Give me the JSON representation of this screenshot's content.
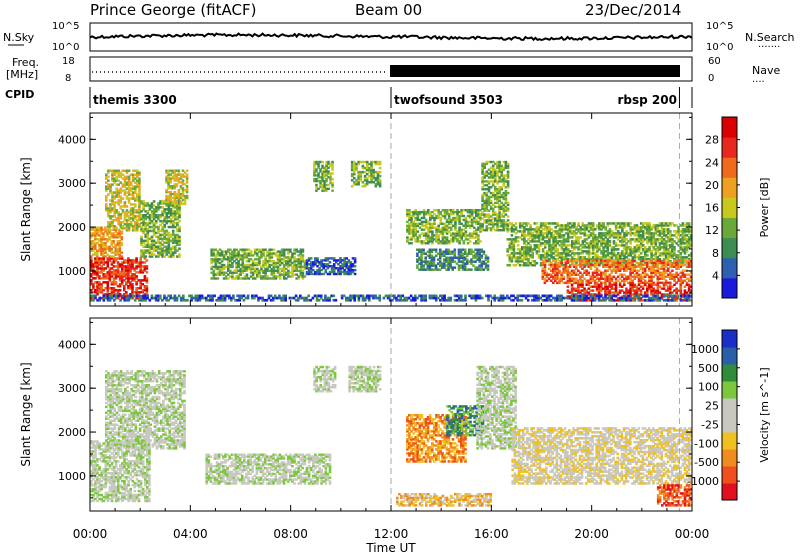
{
  "header": {
    "station": "Prince George (fitACF)",
    "beam": "Beam 00",
    "date": "23/Dec/2014"
  },
  "top_panels": {
    "nsky_label": "N.Sky",
    "nsky_ticks": [
      "10^5",
      "10^0"
    ],
    "nsearch_label": "N.Search",
    "nsearch_ticks": [
      "10^5",
      "10^0"
    ],
    "freq_label": "Freq.",
    "freq_unit": "[MHz]",
    "freq_ticks": [
      "18",
      "8"
    ],
    "nave_label": "Nave",
    "nave_ticks": [
      "60",
      "0"
    ],
    "cpid_label": "CPID",
    "cpid_segments": [
      {
        "label": "themis 3300",
        "start_hour": 0.0,
        "end_hour": 12.0
      },
      {
        "label": "twofsound 3503",
        "start_hour": 12.0,
        "end_hour": 23.5
      },
      {
        "label": "rbsp 200",
        "start_hour": 23.5,
        "end_hour": 24.0
      }
    ]
  },
  "colors": {
    "power_scale": [
      "#1a1adc",
      "#2f5fb0",
      "#3d8c52",
      "#6aa83a",
      "#c8c81e",
      "#f0a020",
      "#f06a1e",
      "#e8281e",
      "#d80000"
    ],
    "velocity_scale": [
      "#1a2fc8",
      "#2a5fa8",
      "#2e8c3a",
      "#7cc83c",
      "#c8c8c0",
      "#c8c8c0",
      "#f0c020",
      "#f08c1e",
      "#f0501e",
      "#e0101e"
    ]
  },
  "chart_data": [
    {
      "type": "heatmap",
      "ylabel": "Slant Range [km]",
      "yticks": [
        "1000",
        "2000",
        "3000",
        "4000"
      ],
      "colorbar_label": "Power [dB]",
      "colorbar_ticks": [
        "4",
        "8",
        "12",
        "16",
        "20",
        "24",
        "28"
      ],
      "colorbar_range": [
        0,
        32
      ],
      "regions": [
        {
          "t0": 0.0,
          "t1": 2.3,
          "r0": 350,
          "r1": 1300,
          "level": 7
        },
        {
          "t0": 0.0,
          "t1": 1.3,
          "r0": 1300,
          "r1": 2000,
          "level": 5
        },
        {
          "t0": 0.6,
          "t1": 2.0,
          "r0": 1900,
          "r1": 3300,
          "level": 4
        },
        {
          "t0": 2.0,
          "t1": 3.6,
          "r0": 1300,
          "r1": 2600,
          "level": 3
        },
        {
          "t0": 3.0,
          "t1": 3.9,
          "r0": 2500,
          "r1": 3300,
          "level": 4
        },
        {
          "t0": 4.8,
          "t1": 8.6,
          "r0": 800,
          "r1": 1500,
          "level": 3
        },
        {
          "t0": 8.6,
          "t1": 10.6,
          "r0": 900,
          "r1": 1300,
          "level": 1
        },
        {
          "t0": 8.9,
          "t1": 9.7,
          "r0": 2800,
          "r1": 3500,
          "level": 3
        },
        {
          "t0": 10.4,
          "t1": 11.6,
          "r0": 2900,
          "r1": 3500,
          "level": 3
        },
        {
          "t0": 12.6,
          "t1": 15.6,
          "r0": 1600,
          "r1": 2400,
          "level": 3
        },
        {
          "t0": 13.0,
          "t1": 15.9,
          "r0": 1000,
          "r1": 1500,
          "level": 2
        },
        {
          "t0": 15.6,
          "t1": 16.7,
          "r0": 1900,
          "r1": 3500,
          "level": 3
        },
        {
          "t0": 16.6,
          "t1": 24.0,
          "r0": 1100,
          "r1": 2100,
          "level": 3
        },
        {
          "t0": 18.0,
          "t1": 24.0,
          "r0": 700,
          "r1": 1250,
          "level": 6
        },
        {
          "t0": 19.0,
          "t1": 24.0,
          "r0": 300,
          "r1": 700,
          "level": 7
        },
        {
          "t0": 0.0,
          "t1": 24.0,
          "r0": 300,
          "r1": 450,
          "level": 1
        }
      ]
    },
    {
      "type": "heatmap",
      "ylabel": "Slant Range [km]",
      "yticks": [
        "1000",
        "2000",
        "3000",
        "4000"
      ],
      "colorbar_label": "Velocity [m s^-1]",
      "colorbar_ticks": [
        "1000",
        "500",
        "100",
        "25",
        "-25",
        "-100",
        "-500",
        "-1000"
      ],
      "colorbar_range": [
        -1000,
        1000
      ],
      "regions": [
        {
          "t0": 0.0,
          "t1": 2.4,
          "r0": 400,
          "r1": 1800,
          "level": 4
        },
        {
          "t0": 0.6,
          "t1": 3.8,
          "r0": 1600,
          "r1": 3400,
          "level": 4
        },
        {
          "t0": 4.6,
          "t1": 9.6,
          "r0": 800,
          "r1": 1500,
          "level": 4
        },
        {
          "t0": 8.9,
          "t1": 9.8,
          "r0": 2900,
          "r1": 3500,
          "level": 4
        },
        {
          "t0": 10.3,
          "t1": 11.6,
          "r0": 2900,
          "r1": 3500,
          "level": 4
        },
        {
          "t0": 12.6,
          "t1": 15.0,
          "r0": 1300,
          "r1": 2400,
          "level": 7
        },
        {
          "t0": 14.2,
          "t1": 15.7,
          "r0": 1900,
          "r1": 2600,
          "level": 2
        },
        {
          "t0": 15.4,
          "t1": 17.0,
          "r0": 1600,
          "r1": 3500,
          "level": 4
        },
        {
          "t0": 16.8,
          "t1": 24.0,
          "r0": 800,
          "r1": 2100,
          "level": 5
        },
        {
          "t0": 12.2,
          "t1": 16.0,
          "r0": 300,
          "r1": 600,
          "level": 6
        },
        {
          "t0": 22.6,
          "t1": 24.0,
          "r0": 300,
          "r1": 800,
          "level": 8
        }
      ]
    }
  ],
  "x_axis": {
    "ticks": [
      "00:00",
      "04:00",
      "08:00",
      "12:00",
      "16:00",
      "20:00",
      "00:00"
    ],
    "label": "Time UT",
    "range_hours": [
      0,
      24
    ]
  }
}
